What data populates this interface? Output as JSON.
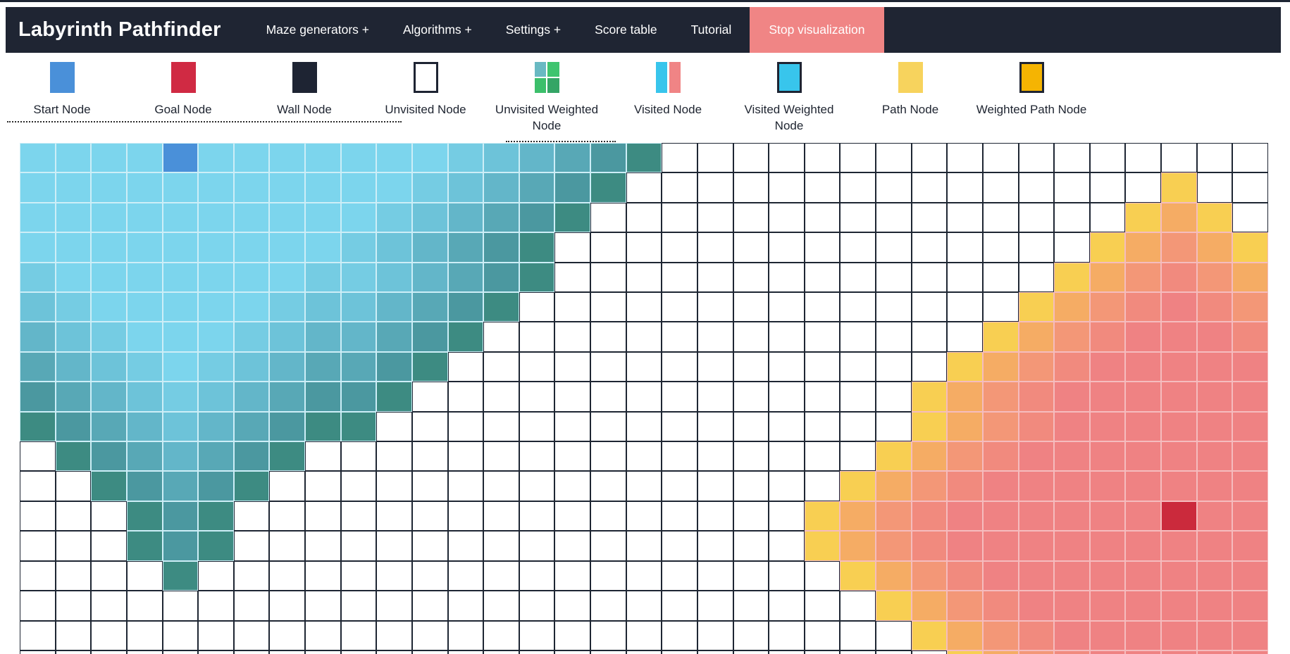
{
  "navbar": {
    "title": "Labyrinth Pathfinder",
    "items": [
      "Maze generators +",
      "Algorithms +",
      "Settings +",
      "Score table",
      "Tutorial"
    ],
    "stop_button": "Stop visualization",
    "bg": "#1f2533",
    "stop_bg": "#f08585"
  },
  "legend": {
    "items": [
      {
        "label": "Start Node",
        "swatch": {
          "type": "solid",
          "color": "#4a90d9"
        }
      },
      {
        "label": "Goal Node",
        "swatch": {
          "type": "solid",
          "color": "#d02a43"
        }
      },
      {
        "label": "Wall Node",
        "swatch": {
          "type": "solid",
          "color": "#1e2433"
        }
      },
      {
        "label": "Unvisited Node",
        "swatch": {
          "type": "bordered",
          "color": "#ffffff",
          "border": "#1e2433"
        }
      },
      {
        "label": "Unvisited Weighted Node",
        "swatch": {
          "type": "quad",
          "colors": [
            "#69b9c2",
            "#3fc46f",
            "#3cbf6b",
            "#35a566"
          ]
        }
      },
      {
        "label": "Visited Node",
        "swatch": {
          "type": "split",
          "colors": [
            "#38c5ec",
            "#f08485"
          ]
        }
      },
      {
        "label": "Visited Weighted Node",
        "swatch": {
          "type": "bordered",
          "color": "#38c5ec",
          "border": "#1e2433"
        }
      },
      {
        "label": "Path Node",
        "swatch": {
          "type": "solid",
          "color": "#f7d35d"
        }
      },
      {
        "label": "Weighted Path Node",
        "swatch": {
          "type": "bordered",
          "color": "#f5b402",
          "border": "#1e2433"
        }
      }
    ]
  },
  "grid": {
    "cols": 35,
    "rows": 18,
    "start": {
      "col": 4,
      "row": 0
    },
    "goal": {
      "col": 32,
      "row": 12
    },
    "rows_map": [
      "TTTTSTTTTTTTTTTTTT.................",
      "TTTTTTTTTTTTTTTTT...............P..",
      "TTTTTTTTTTTTTTTT...............PPP.",
      "TTTTTTTTTTTTTTT...............PPPPP",
      "TTTTTTTTTTTTTTT..............PPPPPP",
      "TTTTTTTTTTTTTT..............PPPPPPP",
      "TTTTTTTTTTTTT..............PPPPPPPP",
      "TTTTTTTTTTTT..............PPPPPPPPP",
      "TTTTTTTTTTT..............PPPPPPPPPP",
      "TTTTTTTTTT...............PPPPPPPPPP",
      ".TTTTTTT................PPPPPPPPPPP",
      "..TTTTT................PPPPPPPPPPPP",
      "...TTT................PPPPPPPPPPGPP",
      "...TTT................PPPPPPPPPPPPP",
      "....T..................PPPPPPPPPPPP",
      "........................PPPPPPPPPPP",
      ".........................PPPPPPPPPP",
      "..........................PPPPPPPPP"
    ],
    "colors": {
      "start": "#4a90d9",
      "goal": "#cb2a3c",
      "unvisited": "#ffffff",
      "unvisited_border": "#1e2633",
      "teal_shades": [
        "#3d8b82",
        "#4b98a0",
        "#58a8b6",
        "#63b6c9",
        "#6dc3d9",
        "#75cce3",
        "#7cd5ed"
      ],
      "pink_shades": [
        "#f8cf52",
        "#f5ac64",
        "#f39777",
        "#f18a7e",
        "#ef8283"
      ],
      "teal_border": "#cdeef7",
      "pink_border": "#f5bcbe"
    }
  }
}
